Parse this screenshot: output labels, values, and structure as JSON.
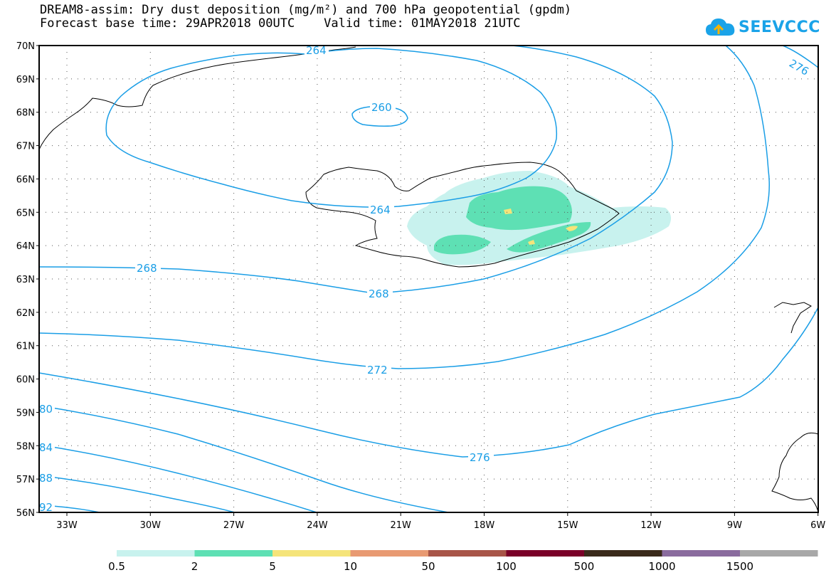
{
  "header": {
    "title_line_1": "DREAM8-assim: Dry dust deposition (mg/m²) and 700 hPa geopotential (gpdm)",
    "title_line_2": "Forecast base time: 29APR2018 00UTC    Valid time: 01MAY2018 21UTC",
    "logo_text": "SEEVCCC"
  },
  "map": {
    "lat_ticks": [
      "70N",
      "69N",
      "68N",
      "67N",
      "66N",
      "65N",
      "64N",
      "63N",
      "62N",
      "61N",
      "60N",
      "59N",
      "58N",
      "57N",
      "56N"
    ],
    "lon_ticks": [
      "33W",
      "30W",
      "27W",
      "24W",
      "21W",
      "18W",
      "15W",
      "12W",
      "9W",
      "6W"
    ],
    "contour_labels": [
      "264",
      "276",
      "260",
      "264",
      "268",
      "268",
      "272",
      "276",
      "80",
      "84",
      "88",
      "92"
    ],
    "contour_color": "#1a9ee6"
  },
  "legend": {
    "colors": [
      "#c8f2ee",
      "#5ee0b4",
      "#f5e47a",
      "#e89a72",
      "#a85548",
      "#7a0028",
      "#3a2a1a",
      "#8a6c9e",
      "#a8a8a8"
    ],
    "labels": [
      "0.5",
      "2",
      "5",
      "10",
      "50",
      "100",
      "500",
      "1000",
      "1500"
    ]
  }
}
